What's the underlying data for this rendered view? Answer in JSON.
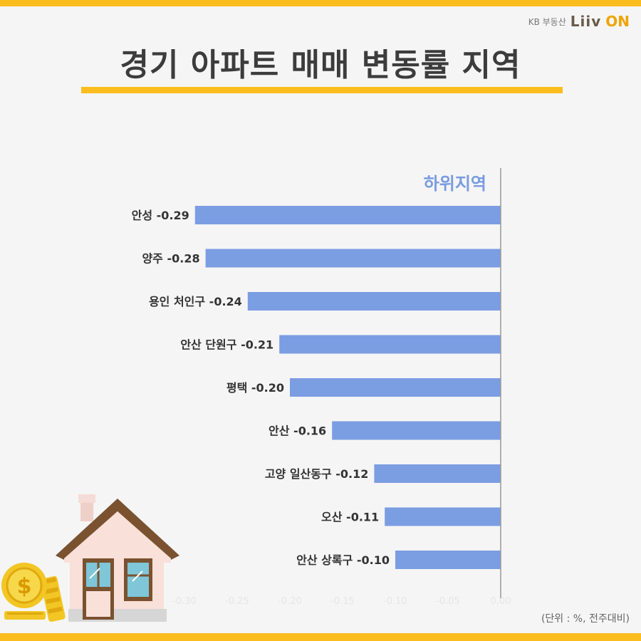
{
  "brand": {
    "kb": "KB 부동산",
    "liiv": "Liiv",
    "on": "ON"
  },
  "title": "경기 아파트 매매 변동률 지역",
  "unit_note": "(단위 : %, 전주대비)",
  "chart_data": {
    "type": "bar",
    "orientation": "horizontal",
    "title": "경기 아파트 매매 변동률 지역",
    "series": [
      {
        "name": "하위지역",
        "color": "#7b9de2",
        "values": [
          -0.29,
          -0.28,
          -0.24,
          -0.21,
          -0.2,
          -0.16,
          -0.12,
          -0.11,
          -0.1
        ]
      }
    ],
    "categories": [
      "안성",
      "양주",
      "용인 처인구",
      "안산 단원구",
      "평택",
      "안산",
      "고양 일산동구",
      "오산",
      "안산 상록구"
    ],
    "bar_labels": [
      "안성 -0.29",
      "양주 -0.28",
      "용인 처인구 -0.24",
      "안산 단원구 -0.21",
      "평택 -0.20",
      "안산 -0.16",
      "고양 일산동구 -0.12",
      "오산 -0.11",
      "안산 상록구 -0.10"
    ],
    "x_ticks": [
      "-0.30",
      "-0.25",
      "-0.20",
      "-0.15",
      "-0.10",
      "-0.05",
      "0.00"
    ],
    "xlim": [
      -0.3,
      0.0
    ],
    "grid": false,
    "legend": "top-right"
  }
}
